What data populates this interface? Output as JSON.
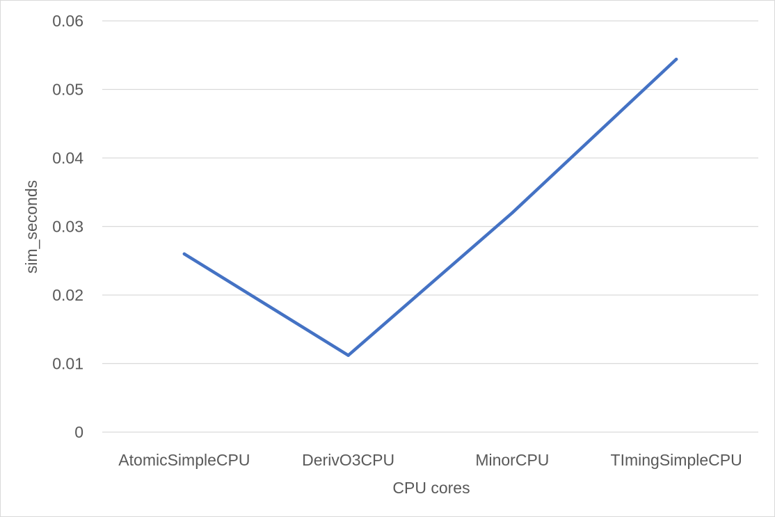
{
  "chart_data": {
    "type": "line",
    "categories": [
      "AtomicSimpleCPU",
      "DerivO3CPU",
      "MinorCPU",
      "TImingSimpleCPU"
    ],
    "series": [
      {
        "values": [
          0.026,
          0.0112,
          0.032,
          0.0544
        ]
      }
    ],
    "xlabel": "CPU cores",
    "ylabel": "sim_seconds",
    "ylim": [
      0,
      0.06
    ],
    "yticks": [
      "0",
      "0.01",
      "0.02",
      "0.03",
      "0.04",
      "0.05",
      "0.06"
    ],
    "grid": true,
    "legend": "none",
    "colors": {
      "line": "#4472c4",
      "grid": "#d9d9d9",
      "text": "#595959"
    }
  }
}
